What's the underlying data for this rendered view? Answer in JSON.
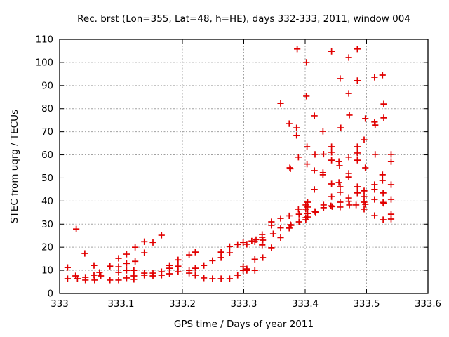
{
  "chart_data": {
    "type": "scatter",
    "title": "Rec. brst (Lon=355, Lat=48, h=HE), days 332-333, 2011, window 004",
    "xlabel": "GPS time / Days of year 2011",
    "ylabel": "STEC from uqrg / TECUs",
    "xlim": [
      333,
      333.6
    ],
    "ylim": [
      0,
      110
    ],
    "xtick_values": [
      333,
      333.1,
      333.2,
      333.3,
      333.4,
      333.5,
      333.6
    ],
    "xtick_labels": [
      "333",
      "333.1",
      "333.2",
      "333.3",
      "333.4",
      "333.5",
      "333.6"
    ],
    "ytick_values": [
      0,
      10,
      20,
      30,
      40,
      50,
      60,
      70,
      80,
      90,
      100,
      110
    ],
    "ytick_labels": [
      "0",
      "10",
      "20",
      "30",
      "40",
      "50",
      "60",
      "70",
      "80",
      "90",
      "100",
      "110"
    ],
    "grid": true,
    "legend": "none",
    "marker": "plus",
    "colors": {
      "marker": "#e10000",
      "grid": "#a0a0a0",
      "axis": "#000000",
      "text": "#000000",
      "background": "#ffffff"
    },
    "points": [
      [
        333.013,
        11.2
      ],
      [
        333.013,
        6.4
      ],
      [
        333.026,
        7.6
      ],
      [
        333.027,
        27.9
      ],
      [
        333.029,
        6.4
      ],
      [
        333.041,
        17.3
      ],
      [
        333.042,
        7.0
      ],
      [
        333.042,
        5.8
      ],
      [
        333.056,
        12.1
      ],
      [
        333.056,
        7.9
      ],
      [
        333.057,
        5.8
      ],
      [
        333.065,
        9.1
      ],
      [
        333.067,
        7.6
      ],
      [
        333.082,
        11.8
      ],
      [
        333.082,
        5.8
      ],
      [
        333.096,
        15.2
      ],
      [
        333.096,
        11.5
      ],
      [
        333.096,
        9.1
      ],
      [
        333.096,
        5.8
      ],
      [
        333.109,
        17.0
      ],
      [
        333.109,
        13.0
      ],
      [
        333.109,
        10.0
      ],
      [
        333.109,
        6.7
      ],
      [
        333.121,
        10.0
      ],
      [
        333.121,
        7.6
      ],
      [
        333.121,
        6.1
      ],
      [
        333.123,
        20.0
      ],
      [
        333.123,
        13.9
      ],
      [
        333.138,
        22.4
      ],
      [
        333.138,
        17.6
      ],
      [
        333.138,
        8.8
      ],
      [
        333.138,
        7.9
      ],
      [
        333.152,
        22.1
      ],
      [
        333.152,
        8.8
      ],
      [
        333.152,
        7.6
      ],
      [
        333.166,
        25.2
      ],
      [
        333.166,
        9.4
      ],
      [
        333.166,
        7.9
      ],
      [
        333.179,
        12.1
      ],
      [
        333.179,
        10.9
      ],
      [
        333.179,
        8.5
      ],
      [
        333.193,
        14.5
      ],
      [
        333.193,
        11.8
      ],
      [
        333.193,
        9.4
      ],
      [
        333.211,
        16.7
      ],
      [
        333.211,
        10.0
      ],
      [
        333.211,
        8.8
      ],
      [
        333.221,
        17.9
      ],
      [
        333.221,
        10.9
      ],
      [
        333.221,
        7.9
      ],
      [
        333.235,
        12.1
      ],
      [
        333.235,
        6.7
      ],
      [
        333.249,
        14.2
      ],
      [
        333.249,
        6.4
      ],
      [
        333.263,
        17.9
      ],
      [
        333.263,
        15.5
      ],
      [
        333.263,
        6.4
      ],
      [
        333.277,
        20.3
      ],
      [
        333.277,
        17.6
      ],
      [
        333.277,
        6.4
      ],
      [
        333.29,
        21.2
      ],
      [
        333.29,
        7.9
      ],
      [
        333.299,
        22.1
      ],
      [
        333.299,
        11.5
      ],
      [
        333.299,
        10.0
      ],
      [
        333.305,
        21.3
      ],
      [
        333.305,
        10.6
      ],
      [
        333.305,
        10.0
      ],
      [
        333.313,
        22.7
      ],
      [
        333.318,
        22.4
      ],
      [
        333.32,
        23.3
      ],
      [
        333.318,
        14.8
      ],
      [
        333.318,
        10.0
      ],
      [
        333.33,
        25.5
      ],
      [
        333.33,
        24.3
      ],
      [
        333.331,
        23.1
      ],
      [
        333.33,
        21.0
      ],
      [
        333.331,
        15.5
      ],
      [
        333.345,
        31.0
      ],
      [
        333.345,
        29.5
      ],
      [
        333.348,
        25.8
      ],
      [
        333.345,
        19.8
      ],
      [
        333.36,
        32.5
      ],
      [
        333.36,
        28.4
      ],
      [
        333.36,
        24.2
      ],
      [
        333.36,
        82.3
      ],
      [
        333.374,
        73.5
      ],
      [
        333.374,
        33.6
      ],
      [
        333.374,
        28.3
      ],
      [
        333.375,
        54.4
      ],
      [
        333.376,
        54.0
      ],
      [
        333.376,
        29.8
      ],
      [
        333.377,
        29.5
      ],
      [
        333.387,
        105.8
      ],
      [
        333.386,
        71.7
      ],
      [
        333.386,
        68.4
      ],
      [
        333.389,
        59.0
      ],
      [
        333.389,
        36.5
      ],
      [
        333.39,
        34.3
      ],
      [
        333.39,
        31.0
      ],
      [
        333.402,
        100.0
      ],
      [
        333.402,
        85.4
      ],
      [
        333.403,
        63.5
      ],
      [
        333.403,
        56.0
      ],
      [
        333.404,
        39.5
      ],
      [
        333.404,
        37.4
      ],
      [
        333.404,
        34.6
      ],
      [
        333.404,
        33.1
      ],
      [
        333.401,
        38.3
      ],
      [
        333.401,
        36.5
      ],
      [
        333.401,
        32.8
      ],
      [
        333.401,
        31.9
      ],
      [
        333.415,
        76.9
      ],
      [
        333.416,
        60.2
      ],
      [
        333.415,
        53.2
      ],
      [
        333.415,
        45.0
      ],
      [
        333.416,
        35.5
      ],
      [
        333.417,
        35.2
      ],
      [
        333.429,
        70.2
      ],
      [
        333.43,
        60.3
      ],
      [
        333.429,
        52.3
      ],
      [
        333.429,
        51.4
      ],
      [
        333.43,
        38.3
      ],
      [
        333.43,
        37.1
      ],
      [
        333.443,
        104.8
      ],
      [
        333.443,
        63.5
      ],
      [
        333.443,
        61.1
      ],
      [
        333.443,
        57.7
      ],
      [
        333.443,
        47.4
      ],
      [
        333.443,
        41.9
      ],
      [
        333.442,
        37.9
      ],
      [
        333.444,
        37.6
      ],
      [
        333.457,
        93.0
      ],
      [
        333.458,
        71.7
      ],
      [
        333.455,
        57.1
      ],
      [
        333.456,
        55.3
      ],
      [
        333.455,
        48.0
      ],
      [
        333.457,
        46.2
      ],
      [
        333.457,
        43.8
      ],
      [
        333.457,
        39.5
      ],
      [
        333.457,
        37.4
      ],
      [
        333.471,
        102.1
      ],
      [
        333.471,
        86.6
      ],
      [
        333.472,
        77.2
      ],
      [
        333.471,
        59.0
      ],
      [
        333.471,
        52.0
      ],
      [
        333.471,
        50.4
      ],
      [
        333.471,
        41.3
      ],
      [
        333.471,
        39.9
      ],
      [
        333.472,
        38.3
      ],
      [
        333.485,
        105.8
      ],
      [
        333.485,
        92.1
      ],
      [
        333.485,
        63.5
      ],
      [
        333.485,
        60.8
      ],
      [
        333.485,
        57.7
      ],
      [
        333.485,
        46.2
      ],
      [
        333.485,
        43.5
      ],
      [
        333.483,
        38.3
      ],
      [
        333.498,
        75.7
      ],
      [
        333.496,
        66.5
      ],
      [
        333.498,
        54.4
      ],
      [
        333.496,
        44.4
      ],
      [
        333.496,
        41.9
      ],
      [
        333.496,
        39.5
      ],
      [
        333.498,
        38.6
      ],
      [
        333.496,
        36.5
      ],
      [
        333.513,
        93.6
      ],
      [
        333.513,
        74.2
      ],
      [
        333.514,
        72.9
      ],
      [
        333.514,
        60.2
      ],
      [
        333.513,
        47.1
      ],
      [
        333.513,
        45.0
      ],
      [
        333.513,
        40.7
      ],
      [
        333.513,
        33.7
      ],
      [
        333.526,
        94.5
      ],
      [
        333.528,
        82.0
      ],
      [
        333.528,
        76.0
      ],
      [
        333.526,
        51.4
      ],
      [
        333.526,
        48.9
      ],
      [
        333.527,
        43.5
      ],
      [
        333.527,
        39.4
      ],
      [
        333.528,
        39.0
      ],
      [
        333.527,
        31.9
      ],
      [
        333.54,
        60.2
      ],
      [
        333.54,
        57.1
      ],
      [
        333.54,
        47.1
      ],
      [
        333.54,
        40.7
      ],
      [
        333.54,
        34.3
      ],
      [
        333.54,
        32.2
      ]
    ]
  }
}
